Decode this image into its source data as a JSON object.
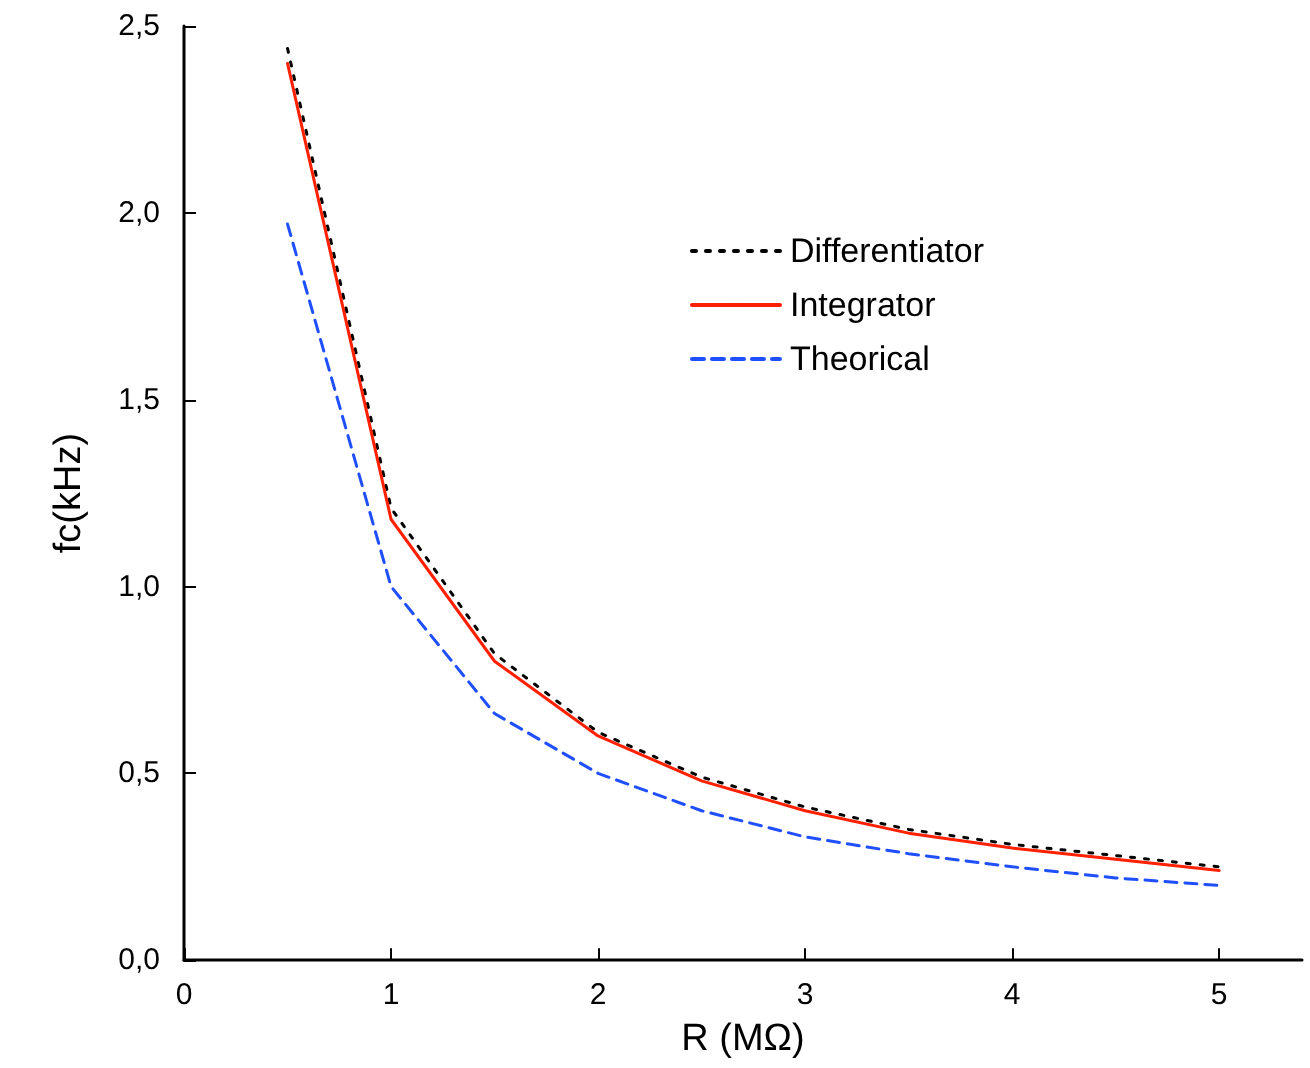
{
  "chart_data": {
    "type": "line",
    "xlabel": "R (MΩ)",
    "ylabel": "fc(kHz)",
    "x": [
      0.5,
      1,
      1.5,
      2,
      2.5,
      3,
      3.5,
      4,
      4.5,
      5
    ],
    "series": [
      {
        "name": "Differentiator",
        "color": "#000000",
        "line_style": "dotted",
        "values": [
          2.44,
          1.21,
          0.82,
          0.61,
          0.49,
          0.41,
          0.35,
          0.31,
          0.28,
          0.25
        ]
      },
      {
        "name": "Integrator",
        "color": "#ff2000",
        "line_style": "solid",
        "values": [
          2.4,
          1.18,
          0.8,
          0.6,
          0.48,
          0.4,
          0.34,
          0.3,
          0.27,
          0.24
        ]
      },
      {
        "name": "Theorical",
        "color": "#1f4fff",
        "line_style": "dashed",
        "values": [
          1.97,
          1.0,
          0.66,
          0.5,
          0.4,
          0.33,
          0.285,
          0.25,
          0.22,
          0.2
        ]
      }
    ],
    "xlim": [
      0,
      5.4
    ],
    "xticks": [
      0,
      1,
      2,
      3,
      4,
      5
    ],
    "ylim": [
      0,
      2.5
    ],
    "yticks": [
      {
        "value": 0,
        "label": "0,0"
      },
      {
        "value": 0.5,
        "label": "0,5"
      },
      {
        "value": 1,
        "label": "1,0"
      },
      {
        "value": 1.5,
        "label": "1,5"
      },
      {
        "value": 2,
        "label": "2,0"
      },
      {
        "value": 2.5,
        "label": "2,5"
      }
    ],
    "grid": false,
    "legend": "top right",
    "marker": "none"
  }
}
